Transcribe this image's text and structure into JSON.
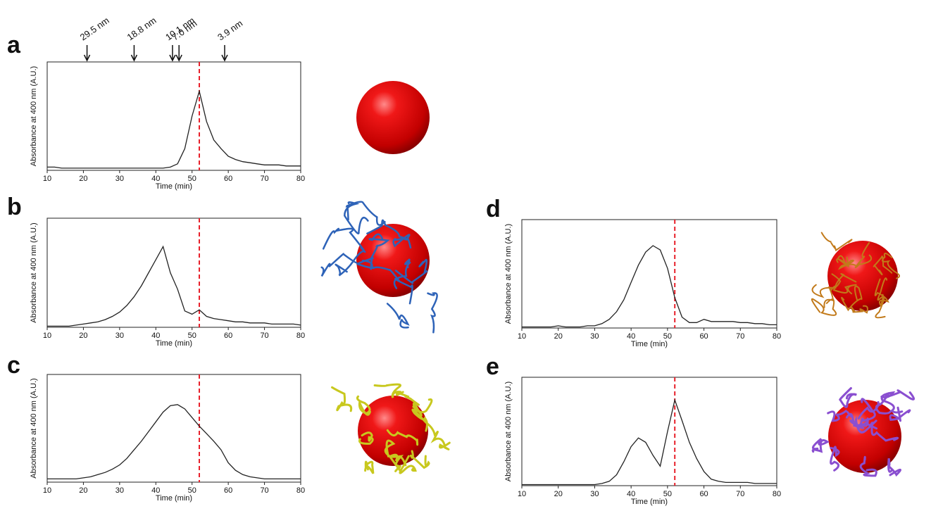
{
  "chart_data": [
    {
      "type": "line",
      "panel_label": "a",
      "xlabel": "Time (min)",
      "ylabel": "Absorbance at 400 nm (A.U.)",
      "xlim": [
        10,
        80
      ],
      "ylim": [
        0,
        1
      ],
      "xticks": [
        10,
        20,
        30,
        40,
        50,
        60,
        70,
        80
      ],
      "color": "#222222",
      "vline": 52,
      "vline_color": "#e8202a",
      "annotations": [
        {
          "label": "29.5 nm",
          "x": 21
        },
        {
          "label": "18.8 nm",
          "x": 34
        },
        {
          "label": "10.1 nm",
          "x": 44.6
        },
        {
          "label": "7.0 nm",
          "x": 46.4
        },
        {
          "label": "3.9 nm",
          "x": 59
        }
      ],
      "x": [
        10,
        12,
        14,
        16,
        18,
        20,
        22,
        24,
        26,
        28,
        30,
        32,
        34,
        36,
        38,
        40,
        42,
        44,
        46,
        48,
        50,
        52,
        54,
        56,
        58,
        60,
        62,
        64,
        66,
        68,
        70,
        72,
        74,
        76,
        78,
        80
      ],
      "values": [
        0.03,
        0.03,
        0.02,
        0.02,
        0.02,
        0.02,
        0.02,
        0.02,
        0.02,
        0.02,
        0.02,
        0.02,
        0.02,
        0.02,
        0.02,
        0.02,
        0.02,
        0.03,
        0.06,
        0.2,
        0.5,
        0.73,
        0.45,
        0.28,
        0.2,
        0.13,
        0.1,
        0.08,
        0.07,
        0.06,
        0.05,
        0.05,
        0.05,
        0.04,
        0.04,
        0.04
      ]
    },
    {
      "type": "line",
      "panel_label": "b",
      "xlabel": "Time (min)",
      "ylabel": "Absorbance at 400 nm (A.U.)",
      "xlim": [
        10,
        80
      ],
      "ylim": [
        0,
        1
      ],
      "xticks": [
        10,
        20,
        30,
        40,
        50,
        60,
        70,
        80
      ],
      "color": "#222222",
      "vline": 52,
      "vline_color": "#e8202a",
      "x": [
        10,
        12,
        14,
        16,
        18,
        20,
        22,
        24,
        26,
        28,
        30,
        32,
        34,
        36,
        38,
        40,
        42,
        44,
        46,
        48,
        50,
        52,
        54,
        56,
        58,
        60,
        62,
        64,
        66,
        68,
        70,
        72,
        74,
        76,
        78,
        80
      ],
      "values": [
        0.01,
        0.01,
        0.01,
        0.01,
        0.02,
        0.03,
        0.04,
        0.05,
        0.07,
        0.1,
        0.14,
        0.2,
        0.28,
        0.38,
        0.5,
        0.62,
        0.74,
        0.5,
        0.35,
        0.15,
        0.12,
        0.16,
        0.1,
        0.08,
        0.07,
        0.06,
        0.05,
        0.05,
        0.04,
        0.04,
        0.04,
        0.03,
        0.03,
        0.03,
        0.03,
        0.02
      ]
    },
    {
      "type": "line",
      "panel_label": "c",
      "xlabel": "Time (min)",
      "ylabel": "Absorbance at 400 nm (A.U.)",
      "xlim": [
        10,
        80
      ],
      "ylim": [
        0,
        1
      ],
      "xticks": [
        10,
        20,
        30,
        40,
        50,
        60,
        70,
        80
      ],
      "color": "#222222",
      "vline": 52,
      "vline_color": "#e8202a",
      "x": [
        10,
        12,
        14,
        16,
        18,
        20,
        22,
        24,
        26,
        28,
        30,
        32,
        34,
        36,
        38,
        40,
        42,
        44,
        46,
        48,
        50,
        52,
        54,
        56,
        58,
        60,
        62,
        64,
        66,
        68,
        70,
        72,
        74,
        76,
        78,
        80
      ],
      "values": [
        0.03,
        0.03,
        0.03,
        0.03,
        0.03,
        0.04,
        0.05,
        0.07,
        0.09,
        0.12,
        0.16,
        0.22,
        0.3,
        0.38,
        0.47,
        0.56,
        0.65,
        0.71,
        0.72,
        0.68,
        0.6,
        0.52,
        0.45,
        0.38,
        0.3,
        0.18,
        0.11,
        0.07,
        0.05,
        0.04,
        0.03,
        0.03,
        0.03,
        0.03,
        0.03,
        0.03
      ]
    },
    {
      "type": "line",
      "panel_label": "d",
      "xlabel": "Time (min)",
      "ylabel": "Absorbance at 400 nm (A.U.)",
      "xlim": [
        10,
        80
      ],
      "ylim": [
        0,
        1
      ],
      "xticks": [
        10,
        20,
        30,
        40,
        50,
        60,
        70,
        80
      ],
      "color": "#222222",
      "vline": 52,
      "vline_color": "#e8202a",
      "x": [
        10,
        12,
        14,
        16,
        18,
        20,
        22,
        24,
        26,
        28,
        30,
        32,
        34,
        36,
        38,
        40,
        42,
        44,
        46,
        48,
        50,
        52,
        54,
        56,
        58,
        60,
        62,
        64,
        66,
        68,
        70,
        72,
        74,
        76,
        78,
        80
      ],
      "values": [
        0.01,
        0.01,
        0.01,
        0.01,
        0.01,
        0.02,
        0.01,
        0.01,
        0.01,
        0.02,
        0.02,
        0.04,
        0.08,
        0.15,
        0.26,
        0.42,
        0.58,
        0.7,
        0.76,
        0.72,
        0.55,
        0.28,
        0.1,
        0.05,
        0.05,
        0.08,
        0.06,
        0.06,
        0.06,
        0.06,
        0.05,
        0.05,
        0.04,
        0.04,
        0.03,
        0.03
      ]
    },
    {
      "type": "line",
      "panel_label": "e",
      "xlabel": "Time (min)",
      "ylabel": "Absorbance at 400 nm (A.U.)",
      "xlim": [
        10,
        80
      ],
      "ylim": [
        0,
        1
      ],
      "xticks": [
        10,
        20,
        30,
        40,
        50,
        60,
        70,
        80
      ],
      "color": "#222222",
      "vline": 52,
      "vline_color": "#e8202a",
      "x": [
        10,
        12,
        14,
        16,
        18,
        20,
        22,
        24,
        26,
        28,
        30,
        32,
        34,
        36,
        38,
        40,
        42,
        44,
        46,
        48,
        50,
        52,
        54,
        56,
        58,
        60,
        62,
        64,
        66,
        68,
        70,
        72,
        74,
        76,
        78,
        80
      ],
      "values": [
        0.01,
        0.01,
        0.01,
        0.01,
        0.01,
        0.01,
        0.01,
        0.01,
        0.01,
        0.01,
        0.01,
        0.02,
        0.04,
        0.1,
        0.22,
        0.36,
        0.44,
        0.4,
        0.28,
        0.18,
        0.5,
        0.79,
        0.6,
        0.4,
        0.25,
        0.13,
        0.06,
        0.04,
        0.03,
        0.03,
        0.03,
        0.03,
        0.02,
        0.02,
        0.02,
        0.02
      ]
    }
  ]
}
